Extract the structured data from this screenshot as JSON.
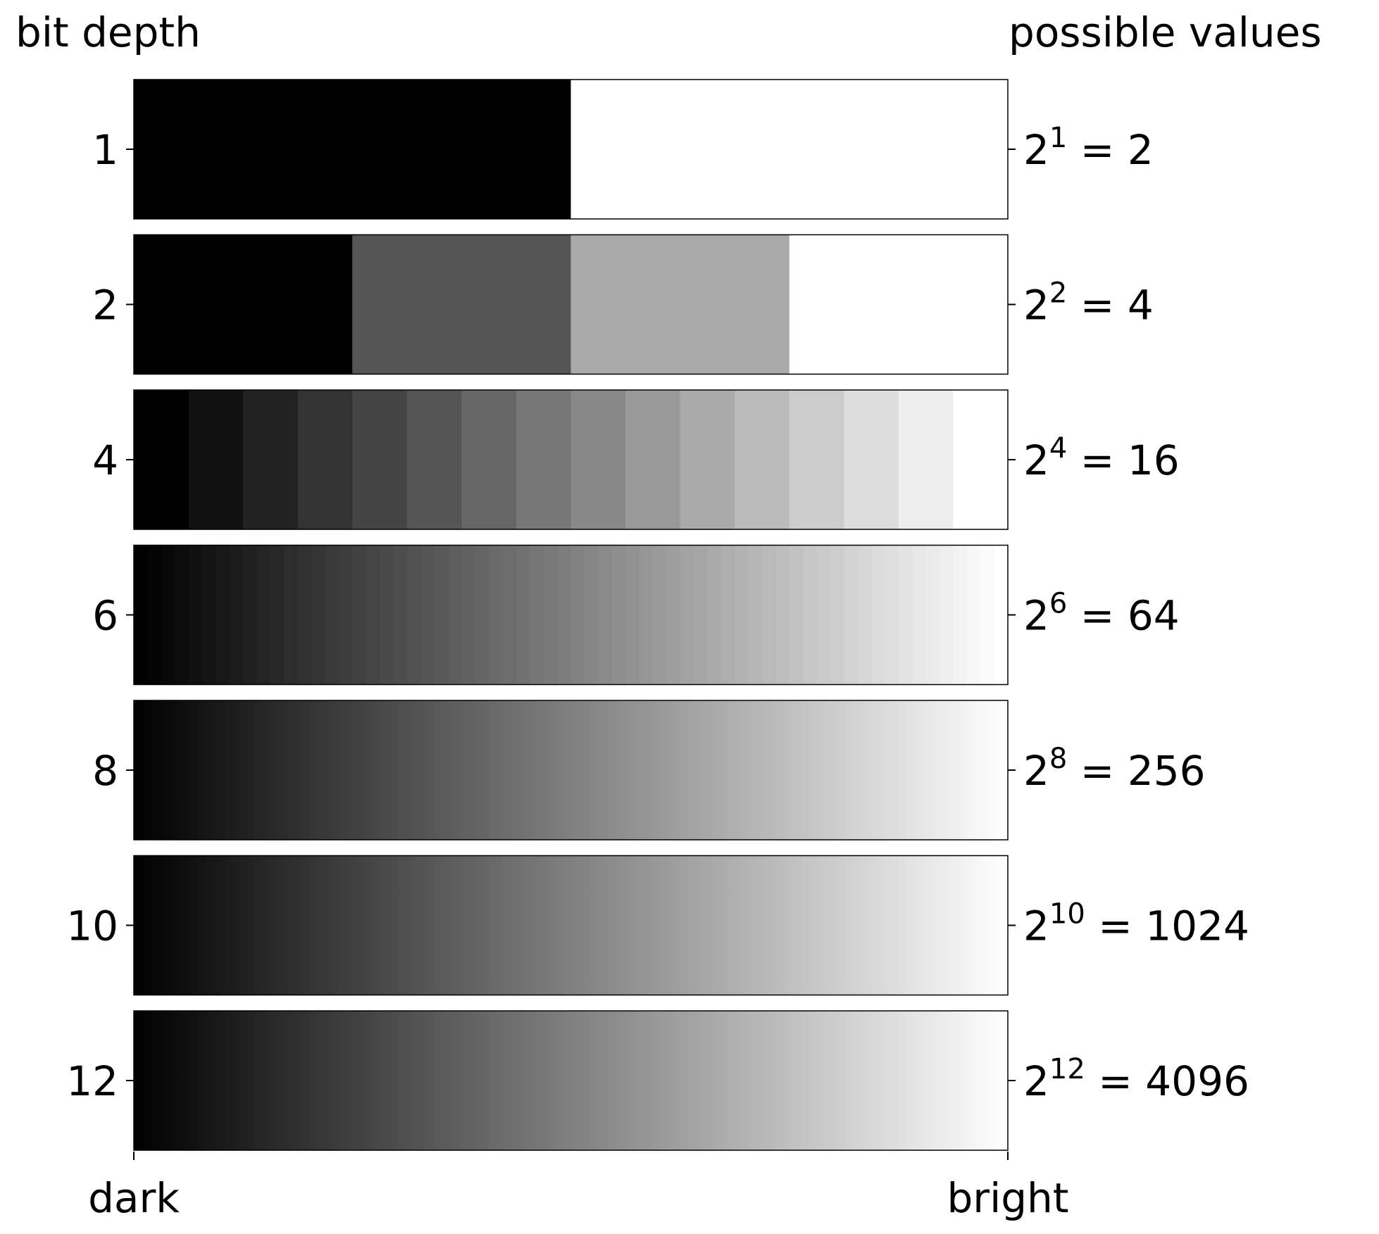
{
  "header": {
    "left_title": "bit depth",
    "right_title": "possible values"
  },
  "x_axis": {
    "left_label": "dark",
    "right_label": "bright"
  },
  "chart_data": {
    "type": "heatmap",
    "title": "",
    "left_axis_label": "bit depth",
    "right_axis_label": "possible values",
    "x_range_labels": [
      "dark",
      "bright"
    ],
    "rows": [
      {
        "bit_depth": "1",
        "base": "2",
        "exponent": "1",
        "result": "= 2",
        "levels": 2
      },
      {
        "bit_depth": "2",
        "base": "2",
        "exponent": "2",
        "result": "= 4",
        "levels": 4
      },
      {
        "bit_depth": "4",
        "base": "2",
        "exponent": "4",
        "result": "= 16",
        "levels": 16
      },
      {
        "bit_depth": "6",
        "base": "2",
        "exponent": "6",
        "result": "= 64",
        "levels": 64
      },
      {
        "bit_depth": "8",
        "base": "2",
        "exponent": "8",
        "result": "= 256",
        "levels": 256
      },
      {
        "bit_depth": "10",
        "base": "2",
        "exponent": "10",
        "result": "= 1024",
        "levels": 1024
      },
      {
        "bit_depth": "12",
        "base": "2",
        "exponent": "12",
        "result": "= 4096",
        "levels": 4096
      }
    ]
  }
}
